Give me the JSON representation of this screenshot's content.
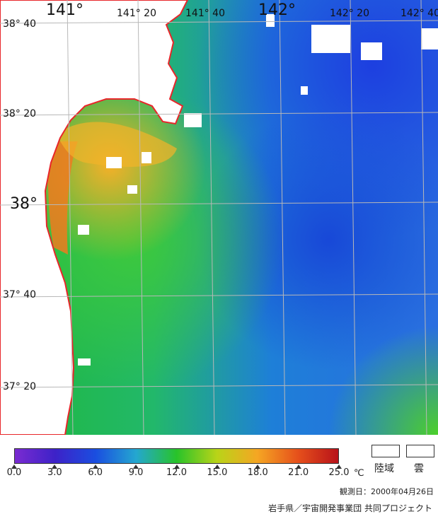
{
  "map": {
    "lon_labels": [
      {
        "text": "141°",
        "big": true
      },
      {
        "text": "141° 20",
        "big": false
      },
      {
        "text": "141° 40",
        "big": false
      },
      {
        "text": "142°",
        "big": true
      },
      {
        "text": "142° 20",
        "big": false
      },
      {
        "text": "142° 40",
        "big": false
      }
    ],
    "lat_labels": [
      {
        "text": "38° 40",
        "big": false
      },
      {
        "text": "38° 20",
        "big": false
      },
      {
        "text": "38°",
        "big": true
      },
      {
        "text": "37° 40",
        "big": false
      },
      {
        "text": "37° 20",
        "big": false
      }
    ],
    "colors": {
      "land": "#ffffff",
      "coast": "#e8262a",
      "grid": "#b8b8b8"
    }
  },
  "legend": {
    "scale_stops": [
      {
        "value": "0.0",
        "color": "#7a2bd1"
      },
      {
        "value": "3.0",
        "color": "#3d22c8"
      },
      {
        "value": "6.0",
        "color": "#1a4ee0"
      },
      {
        "value": "9.0",
        "color": "#24a7d0"
      },
      {
        "value": "12.0",
        "color": "#28c32a"
      },
      {
        "value": "15.0",
        "color": "#b9d418"
      },
      {
        "value": "18.0",
        "color": "#f5a623"
      },
      {
        "value": "21.0",
        "color": "#e6501b"
      },
      {
        "value": "25.0",
        "color": "#b8121a"
      }
    ],
    "unit": "℃",
    "keys": [
      {
        "label": "陸域",
        "color": "#ffffff"
      },
      {
        "label": "雲",
        "color": "#ffffff"
      }
    ],
    "observation_date": "観測日：2000年04月26日",
    "credit": "岩手県／宇宙開発事業団  共同プロジェクト"
  }
}
